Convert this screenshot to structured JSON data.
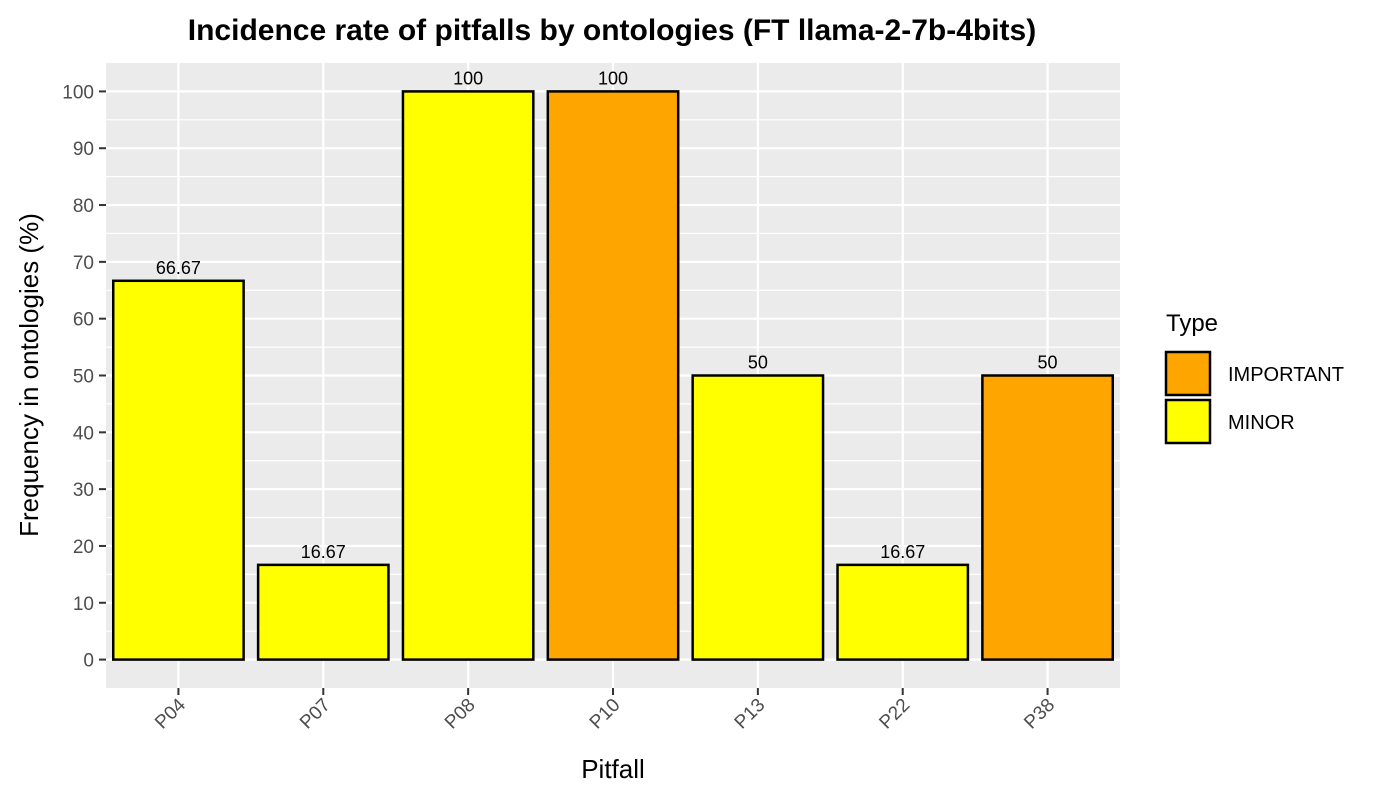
{
  "chart_data": {
    "type": "bar",
    "title": "Incidence rate of pitfalls by ontologies (FT llama-2-7b-4bits)",
    "xlabel": "Pitfall",
    "ylabel": "Frequency in ontologies (%)",
    "categories": [
      "P04",
      "P07",
      "P08",
      "P10",
      "P13",
      "P22",
      "P38"
    ],
    "values": [
      66.67,
      16.67,
      100,
      100,
      50,
      16.67,
      50
    ],
    "value_labels": [
      "66.67",
      "16.67",
      "100",
      "100",
      "50",
      "16.67",
      "50"
    ],
    "types": [
      "MINOR",
      "MINOR",
      "MINOR",
      "IMPORTANT",
      "MINOR",
      "MINOR",
      "IMPORTANT"
    ],
    "ylim": [
      -5,
      105
    ],
    "yticks": [
      0,
      10,
      20,
      30,
      40,
      50,
      60,
      70,
      80,
      90,
      100
    ],
    "ytick_labels": [
      "0",
      "10",
      "20",
      "30",
      "40",
      "50",
      "60",
      "70",
      "80",
      "90",
      "100"
    ],
    "grid": true,
    "x_tick_rotation": "45 degrees",
    "legend": {
      "title": "Type",
      "position": "right",
      "entries": [
        {
          "label": "IMPORTANT",
          "color": "#FFA500"
        },
        {
          "label": "MINOR",
          "color": "#FFFF00"
        }
      ]
    },
    "colors": {
      "IMPORTANT": "#FFA500",
      "MINOR": "#FFFF00",
      "panel_background": "#EBEBEB",
      "grid": "#FFFFFF",
      "bar_outline": "#000000"
    }
  }
}
